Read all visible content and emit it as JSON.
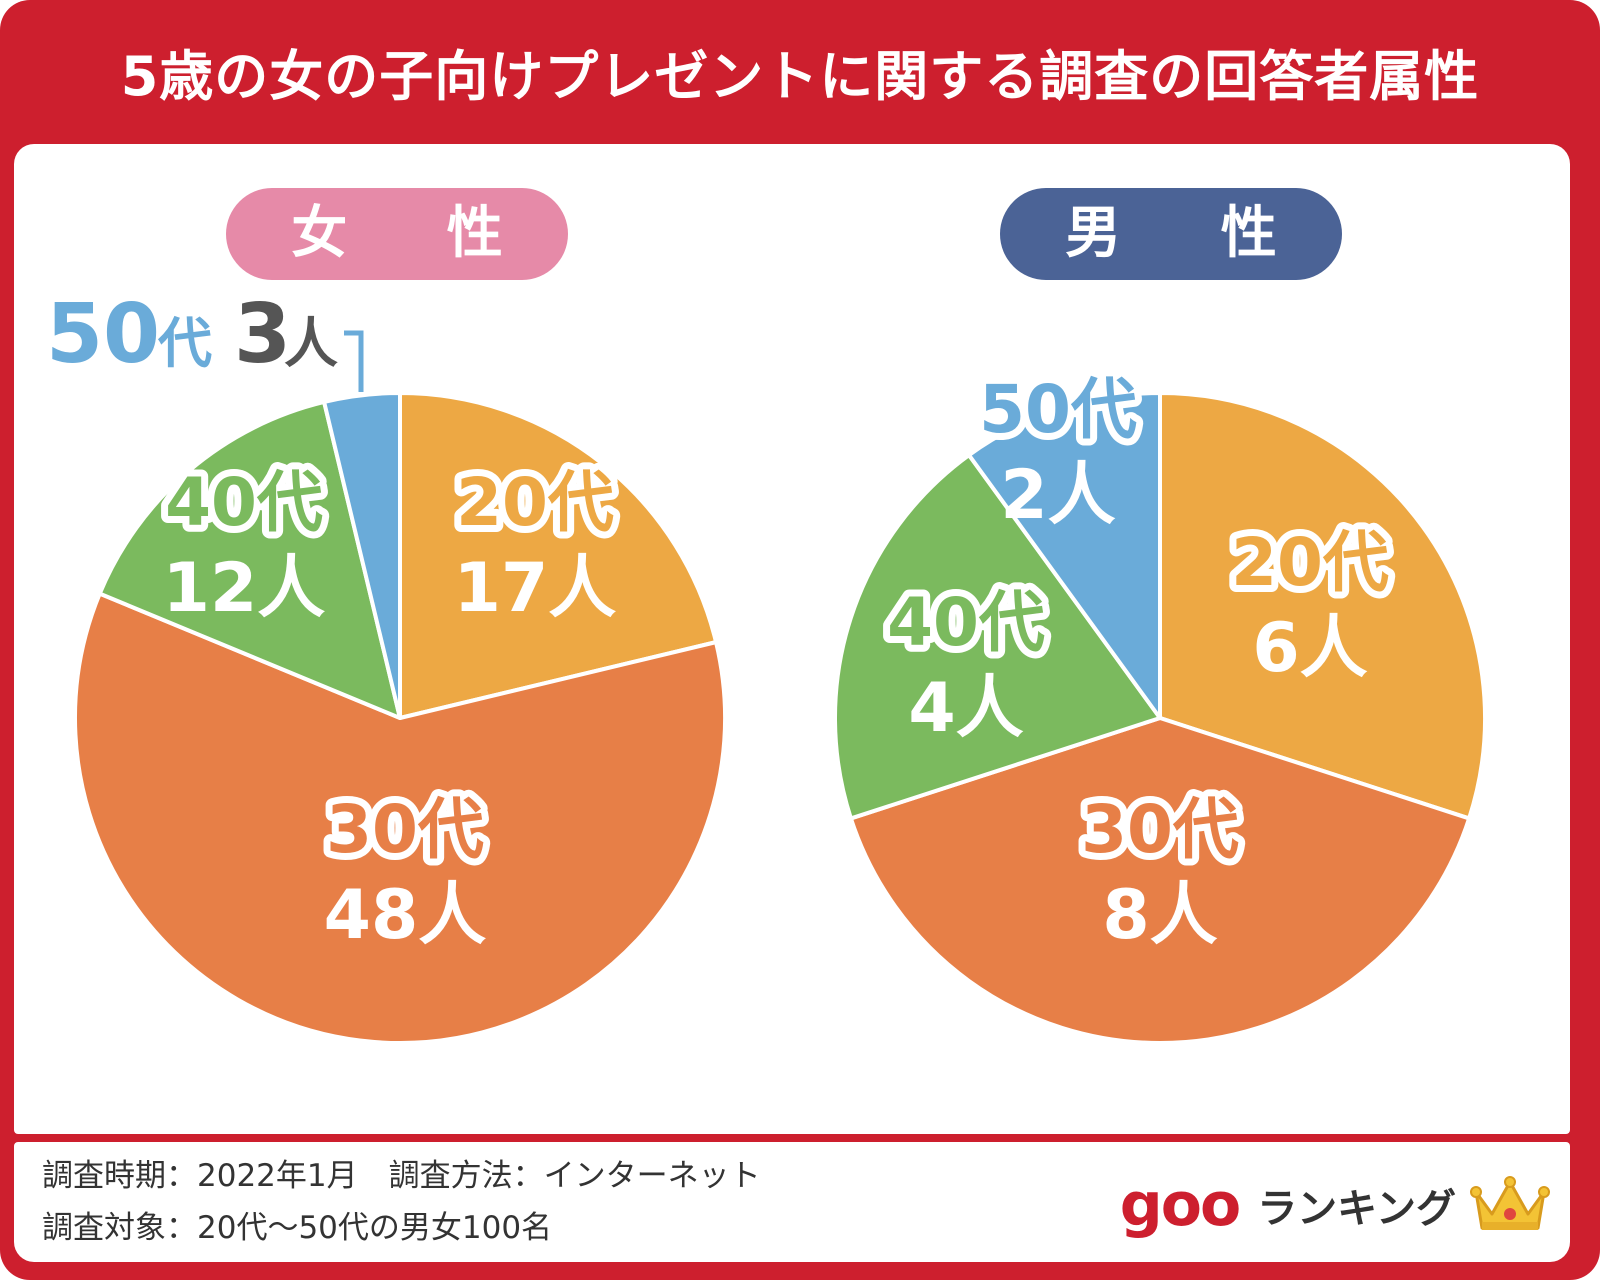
{
  "header": {
    "title": "5歳の女の子向けプレゼントに関する調査の回答者属性"
  },
  "chart_data": [
    {
      "type": "pie",
      "title": "女性",
      "title_display": "女 性",
      "unit": "人",
      "categories": [
        "20代",
        "30代",
        "40代",
        "50代"
      ],
      "values": [
        17,
        48,
        12,
        3
      ],
      "colors": [
        "#eda844",
        "#e77f47",
        "#7bba5e",
        "#6aabd9"
      ]
    },
    {
      "type": "pie",
      "title": "男性",
      "title_display": "男 性",
      "unit": "人",
      "categories": [
        "20代",
        "30代",
        "40代",
        "50代"
      ],
      "values": [
        6,
        8,
        4,
        2
      ],
      "colors": [
        "#eda844",
        "#e77f47",
        "#7bba5e",
        "#6aabd9"
      ]
    }
  ],
  "female_callout": {
    "age": "50",
    "dai": "代",
    "count": "3",
    "unit": "人"
  },
  "footer": {
    "line1": "調査時期：2022年1月　調査方法：インターネット",
    "line2": "調査対象：20代〜50代の男女100名"
  },
  "brand": {
    "name": "goo",
    "label": "ランキング",
    "icon": "crown-icon"
  },
  "colors": {
    "frame": "#cd1f2e",
    "female": "#e68aa8",
    "male": "#4b6396",
    "callout_blue": "#6aabd9",
    "callout_gray": "#555555"
  }
}
